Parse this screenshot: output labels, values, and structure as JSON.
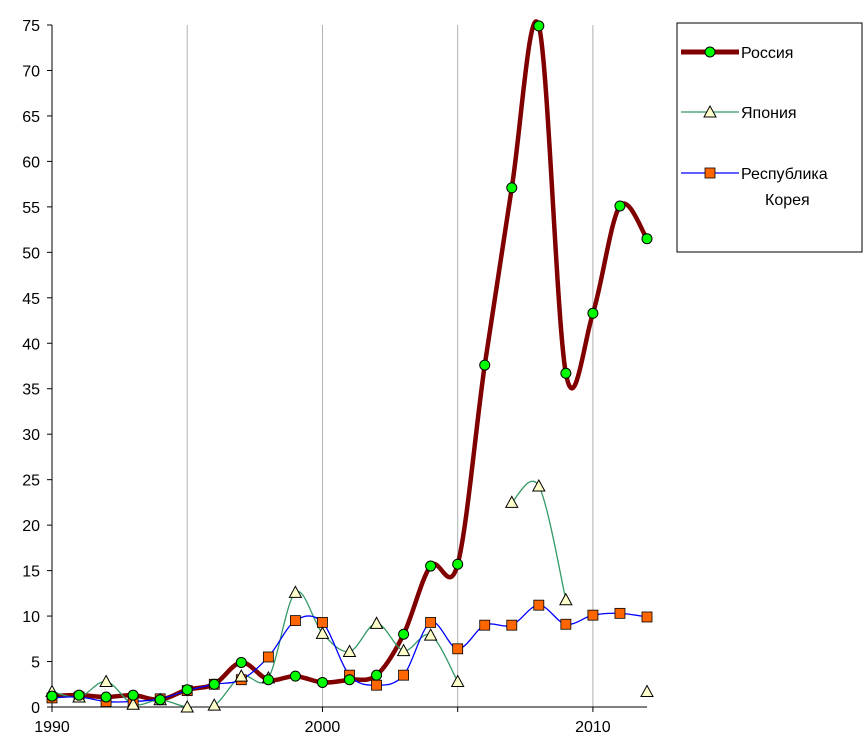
{
  "chart_data": {
    "type": "line",
    "title": "",
    "xlabel": "",
    "ylabel": "",
    "xlim": [
      1990,
      2012
    ],
    "ylim": [
      0,
      75
    ],
    "x_ticks": [
      1990,
      2000,
      2010
    ],
    "x_tick_labels": [
      "1990",
      "2000",
      "2010"
    ],
    "y_ticks": [
      0,
      5,
      10,
      15,
      20,
      25,
      30,
      35,
      40,
      45,
      50,
      55,
      60,
      65,
      70,
      75
    ],
    "y_tick_labels": [
      "0",
      "5",
      "10",
      "15",
      "20",
      "25",
      "30",
      "35",
      "40",
      "45",
      "50",
      "55",
      "60",
      "65",
      "70",
      "75"
    ],
    "grid": "vertical",
    "legend_position": "right",
    "x": [
      1990,
      1991,
      1992,
      1993,
      1994,
      1995,
      1996,
      1997,
      1998,
      1999,
      2000,
      2001,
      2002,
      2003,
      2004,
      2005,
      2006,
      2007,
      2008,
      2009,
      2010,
      2011,
      2012
    ],
    "series": [
      {
        "name": "Россия",
        "color": "#800000",
        "marker": "circle",
        "marker_fill": "#00ff00",
        "values": [
          1.2,
          1.3,
          1.1,
          1.3,
          0.8,
          1.9,
          2.5,
          4.9,
          3.0,
          3.4,
          2.7,
          3.0,
          3.5,
          8.0,
          15.5,
          15.7,
          37.6,
          57.1,
          74.9,
          36.7,
          43.3,
          55.1,
          51.5
        ]
      },
      {
        "name": "Япония",
        "color": "#339966",
        "marker": "triangle",
        "marker_fill": "#ffffcc",
        "values": [
          1.7,
          1.1,
          2.8,
          0.3,
          0.8,
          0.0,
          0.2,
          3.4,
          3.2,
          12.6,
          8.1,
          6.1,
          9.2,
          6.2,
          7.9,
          2.8,
          null,
          22.5,
          24.3,
          11.8,
          null,
          null,
          1.7
        ]
      },
      {
        "name": "Республика Корея",
        "color": "#0000ff",
        "marker": "square",
        "marker_fill": "#ff6600",
        "values": [
          1.0,
          1.1,
          0.6,
          0.6,
          0.9,
          1.8,
          2.5,
          3.0,
          5.5,
          9.5,
          9.3,
          3.5,
          2.4,
          3.5,
          9.3,
          6.4,
          9.0,
          9.0,
          11.2,
          9.1,
          10.1,
          10.3,
          9.9
        ]
      }
    ]
  }
}
